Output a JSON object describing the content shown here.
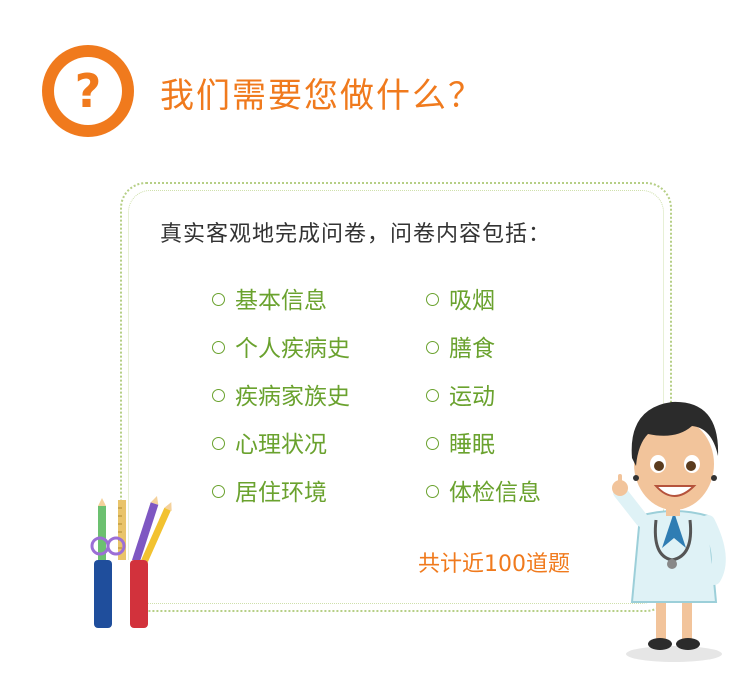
{
  "header": {
    "icon_glyph": "?",
    "title": "我们需要您做什么？"
  },
  "card": {
    "intro": "真实客观地完成问卷，问卷内容包括：",
    "left_items": [
      "基本信息",
      "个人疾病史",
      "疾病家族史",
      "心理状况",
      "居住环境"
    ],
    "right_items": [
      "吸烟",
      "膳食",
      "运动",
      "睡眠",
      "体检信息"
    ],
    "total": "共计近100道题"
  },
  "colors": {
    "accent_orange": "#f07a1d",
    "item_green": "#6aa22e",
    "border_green": "#b6cf86"
  },
  "illustrations": {
    "question_icon": "question-mark-icon",
    "pencil_cup": "pencil-cup-icon",
    "doctor": "doctor-character-icon"
  }
}
